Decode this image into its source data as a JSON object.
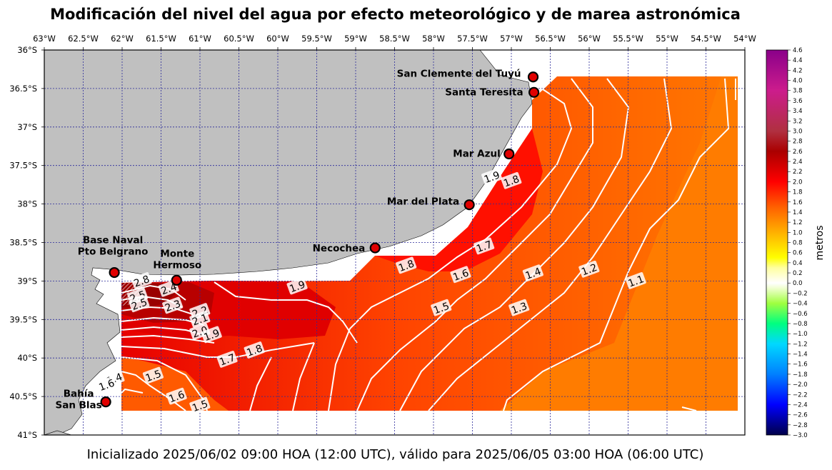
{
  "title": "Modificación del nivel del agua por efecto meteorológico y de marea astronómica",
  "subtitle": "Inicializado 2025/06/02 09:00 HOA (12:00 UTC), válido para 2025/06/05 03:00 HOA (06:00 UTC)",
  "map": {
    "lon_range": [
      -63.0,
      -54.0
    ],
    "lat_range": [
      -41.0,
      -36.0
    ],
    "lon_ticks": [
      {
        "value": -63.0,
        "label": "63°W"
      },
      {
        "value": -62.5,
        "label": "62.5°W"
      },
      {
        "value": -62.0,
        "label": "62°W"
      },
      {
        "value": -61.5,
        "label": "61.5°W"
      },
      {
        "value": -61.0,
        "label": "61°W"
      },
      {
        "value": -60.5,
        "label": "60.5°W"
      },
      {
        "value": -60.0,
        "label": "60°W"
      },
      {
        "value": -59.5,
        "label": "59.5°W"
      },
      {
        "value": -59.0,
        "label": "59°W"
      },
      {
        "value": -58.5,
        "label": "58.5°W"
      },
      {
        "value": -58.0,
        "label": "58°W"
      },
      {
        "value": -57.5,
        "label": "57.5°W"
      },
      {
        "value": -57.0,
        "label": "57°W"
      },
      {
        "value": -56.5,
        "label": "56.5°W"
      },
      {
        "value": -56.0,
        "label": "56°W"
      },
      {
        "value": -55.5,
        "label": "55.5°W"
      },
      {
        "value": -55.0,
        "label": "55°W"
      },
      {
        "value": -54.5,
        "label": "54.5°W"
      },
      {
        "value": -54.0,
        "label": "54°W"
      }
    ],
    "lat_ticks": [
      {
        "value": -36.0,
        "label": "36°S"
      },
      {
        "value": -36.5,
        "label": "36.5°S"
      },
      {
        "value": -37.0,
        "label": "37°S"
      },
      {
        "value": -37.5,
        "label": "37.5°S"
      },
      {
        "value": -38.0,
        "label": "38°S"
      },
      {
        "value": -38.5,
        "label": "38.5°S"
      },
      {
        "value": -39.0,
        "label": "39°S"
      },
      {
        "value": -39.5,
        "label": "39.5°S"
      },
      {
        "value": -40.0,
        "label": "40°S"
      },
      {
        "value": -40.5,
        "label": "40.5°S"
      },
      {
        "value": -41.0,
        "label": "41°S"
      }
    ],
    "grid": true,
    "land_color": "#c0c0c0",
    "grid_color": "#2a2a9a",
    "stations": [
      {
        "name": "San Clemente del Tuyú",
        "lon": -56.72,
        "lat": -36.35
      },
      {
        "name": "Santa Teresita",
        "lon": -56.71,
        "lat": -36.55
      },
      {
        "name": "Mar Azul",
        "lon": -57.03,
        "lat": -37.35
      },
      {
        "name": "Mar del Plata",
        "lon": -57.54,
        "lat": -38.01
      },
      {
        "name": "Necochea",
        "lon": -58.75,
        "lat": -38.57
      },
      {
        "name": "Base Naval Pto Belgrano",
        "lines": [
          "Base Naval",
          "Pto Belgrano"
        ],
        "lon": -62.1,
        "lat": -38.89
      },
      {
        "name": "Monte Hermoso",
        "lines": [
          "Monte",
          "Hermoso"
        ],
        "lon": -61.3,
        "lat": -38.99
      },
      {
        "name": "Bahía San Blas",
        "lines": [
          "Bahía",
          "San Blas"
        ],
        "lon": -62.21,
        "lat": -40.57
      }
    ],
    "contour_labels": [
      {
        "text": "1.9",
        "lon": -57.25,
        "lat": -37.65
      },
      {
        "text": "1.8",
        "lon": -57.0,
        "lat": -37.7
      },
      {
        "text": "1.7",
        "lon": -57.35,
        "lat": -38.55
      },
      {
        "text": "1.8",
        "lon": -58.35,
        "lat": -38.8
      },
      {
        "text": "1.6",
        "lon": -57.65,
        "lat": -38.92
      },
      {
        "text": "1.4",
        "lon": -56.72,
        "lat": -38.9
      },
      {
        "text": "1.2",
        "lon": -56.0,
        "lat": -38.85
      },
      {
        "text": "1.1",
        "lon": -55.4,
        "lat": -39.0
      },
      {
        "text": "1.5",
        "lon": -57.9,
        "lat": -39.35
      },
      {
        "text": "1.3",
        "lon": -56.9,
        "lat": -39.35
      },
      {
        "text": "1.9",
        "lon": -59.75,
        "lat": -39.07
      },
      {
        "text": "2.8",
        "lon": -61.75,
        "lat": -39.0
      },
      {
        "text": "2.5",
        "lon": -61.8,
        "lat": -39.2
      },
      {
        "text": "2.5",
        "lon": -61.78,
        "lat": -39.3
      },
      {
        "text": "2.4",
        "lon": -61.4,
        "lat": -39.1
      },
      {
        "text": "2.3",
        "lon": -61.35,
        "lat": -39.32
      },
      {
        "text": "2.2",
        "lon": -61.0,
        "lat": -39.4
      },
      {
        "text": "2.1",
        "lon": -61.0,
        "lat": -39.5
      },
      {
        "text": "2.0",
        "lon": -61.0,
        "lat": -39.66
      },
      {
        "text": "1.9",
        "lon": -60.85,
        "lat": -39.7
      },
      {
        "text": "1.7",
        "lon": -60.65,
        "lat": -40.02
      },
      {
        "text": "1.8",
        "lon": -60.3,
        "lat": -39.9
      },
      {
        "text": "1.5",
        "lon": -61.6,
        "lat": -40.23
      },
      {
        "text": "1.4",
        "lon": -62.1,
        "lat": -40.27
      },
      {
        "text": "1.6",
        "lon": -62.2,
        "lat": -40.35
      },
      {
        "text": "1.6",
        "lon": -61.3,
        "lat": -40.5
      },
      {
        "text": "1.5",
        "lon": -61.0,
        "lat": -40.62
      }
    ]
  },
  "colorbar": {
    "label": "metros",
    "min": -3.0,
    "max": 4.6,
    "tick_labels": [
      "4.6",
      "4.4",
      "4.2",
      "4.0",
      "3.8",
      "3.6",
      "3.4",
      "3.2",
      "3.0",
      "2.8",
      "2.6",
      "2.4",
      "2.2",
      "2.0",
      "1.8",
      "1.6",
      "1.4",
      "1.2",
      "1.0",
      "0.8",
      "0.6",
      "0.4",
      "0.2",
      "0.0",
      "−0.2",
      "−0.4",
      "−0.6",
      "−0.8",
      "−1.0",
      "−1.2",
      "−1.4",
      "−1.6",
      "−1.8",
      "−2.0",
      "−2.2",
      "−2.4",
      "−2.6",
      "−2.8",
      "−3.0"
    ],
    "stops": [
      {
        "value": -3.0,
        "color": "#00004a"
      },
      {
        "value": -2.4,
        "color": "#0000ff"
      },
      {
        "value": -1.8,
        "color": "#0080ff"
      },
      {
        "value": -1.2,
        "color": "#00d8ff"
      },
      {
        "value": -0.8,
        "color": "#00ff80"
      },
      {
        "value": -0.4,
        "color": "#a0ff40"
      },
      {
        "value": -0.1,
        "color": "#f0ffd0"
      },
      {
        "value": 0.0,
        "color": "#ffffff"
      },
      {
        "value": 0.3,
        "color": "#ffffa0"
      },
      {
        "value": 0.5,
        "color": "#ffff00"
      },
      {
        "value": 1.0,
        "color": "#ffb000"
      },
      {
        "value": 1.5,
        "color": "#ff6000"
      },
      {
        "value": 2.0,
        "color": "#ff0000"
      },
      {
        "value": 2.6,
        "color": "#aa0000"
      },
      {
        "value": 3.0,
        "color": "#b03040"
      },
      {
        "value": 3.8,
        "color": "#cc1c8c"
      },
      {
        "value": 4.6,
        "color": "#8a008a"
      }
    ]
  }
}
